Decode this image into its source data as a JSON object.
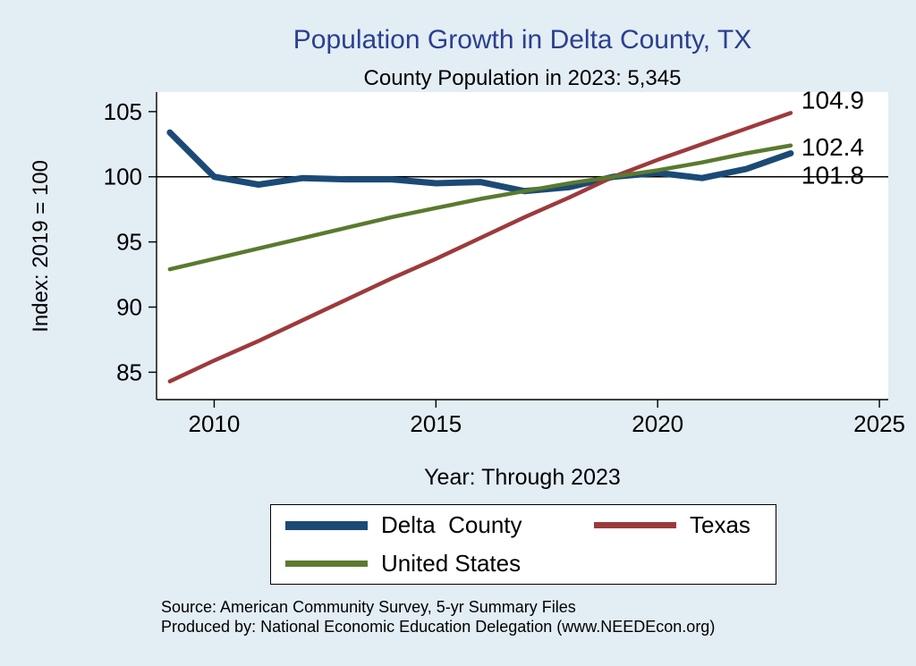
{
  "chart": {
    "title": "Population Growth in Delta County, TX",
    "subtitle": "County Population in 2023: 5,345",
    "ylabel": "Index: 2019 = 100",
    "xlabel": "Year: Through 2023",
    "notes": [
      "Source: American Community Survey, 5-yr Summary Files",
      "Produced by: National Economic Education Delegation (www.NEEDEcon.org)"
    ],
    "legend": [
      {
        "label": "Delta  County",
        "color": "#1b4a77",
        "thickness": 10
      },
      {
        "label": "Texas",
        "color": "#9d3a3c",
        "thickness": 7
      },
      {
        "label": "United States",
        "color": "#5a7a2e",
        "thickness": 7
      }
    ]
  },
  "colors": {
    "background": "#e2edf4",
    "plot_background": "#ffffff",
    "title": "#2b3f8f",
    "axis": "#000000",
    "delta_county": "#1b4a77",
    "texas": "#9d3a3c",
    "united_states": "#5a7a2e"
  },
  "chart_data": {
    "type": "line",
    "title": "Population Growth in Delta County, TX",
    "subtitle": "County Population in 2023: 5,345",
    "xlabel": "Year: Through 2023",
    "ylabel": "Index: 2019 = 100",
    "x": [
      2009,
      2010,
      2011,
      2012,
      2013,
      2014,
      2015,
      2016,
      2017,
      2018,
      2019,
      2020,
      2021,
      2022,
      2023
    ],
    "series": [
      {
        "name": "Delta County",
        "color": "#1b4a77",
        "width": 7,
        "values": [
          103.4,
          100.0,
          99.4,
          99.9,
          99.8,
          99.8,
          99.5,
          99.6,
          98.9,
          99.2,
          100.0,
          100.3,
          99.9,
          100.6,
          101.8
        ]
      },
      {
        "name": "Texas",
        "color": "#9d3a3c",
        "width": 4.5,
        "values": [
          84.3,
          85.9,
          87.4,
          89.0,
          90.6,
          92.2,
          93.7,
          95.3,
          96.9,
          98.4,
          100.0,
          101.3,
          102.5,
          103.7,
          104.9
        ]
      },
      {
        "name": "United States",
        "color": "#5a7a2e",
        "width": 4.5,
        "values": [
          92.9,
          93.7,
          94.5,
          95.3,
          96.1,
          96.9,
          97.6,
          98.3,
          98.9,
          99.5,
          100.0,
          100.5,
          101.1,
          101.8,
          102.4
        ]
      }
    ],
    "x_ticks": [
      2010,
      2015,
      2020,
      2025
    ],
    "y_ticks": [
      85,
      90,
      95,
      100,
      105
    ],
    "xlim": [
      2008.7,
      2025.2
    ],
    "ylim": [
      82.9,
      106.5
    ],
    "ref_line_y": 100,
    "end_labels": [
      {
        "text": "104.9",
        "at_value": 105.85
      },
      {
        "text": "102.4",
        "at_value": 102.25
      },
      {
        "text": "101.8",
        "at_value": 100.1
      }
    ],
    "grid": false,
    "legend_position": "bottom"
  }
}
